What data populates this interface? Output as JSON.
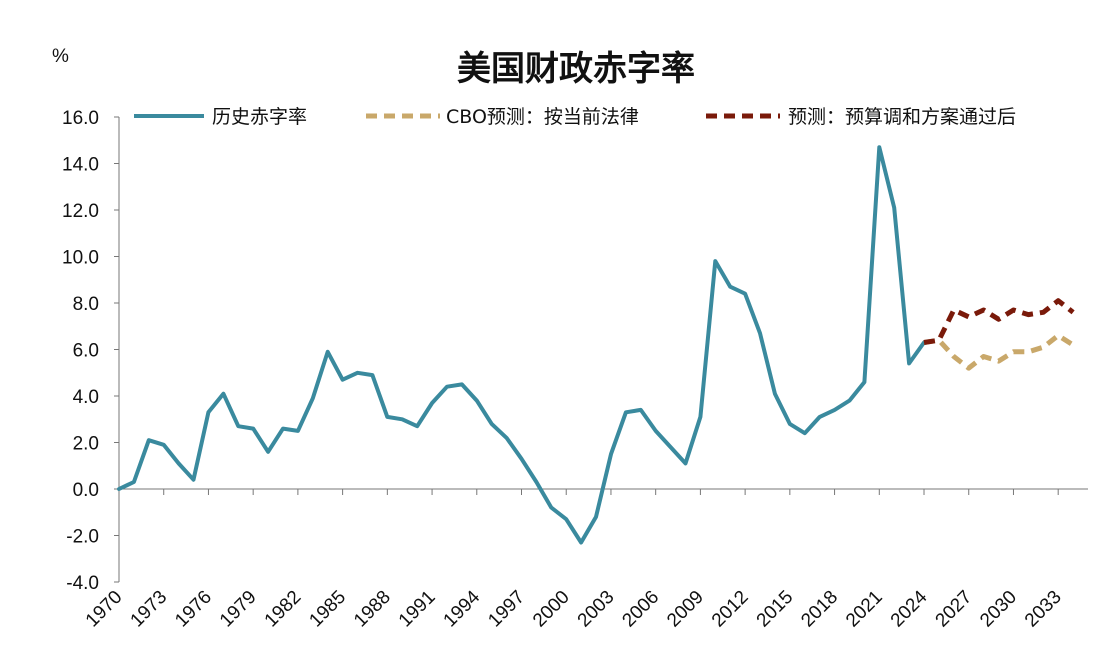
{
  "chart_data": {
    "type": "line",
    "title": "美国财政赤字率",
    "unit_label": "%",
    "ylim": [
      -4,
      16
    ],
    "y_ticks": [
      "16.0",
      "14.0",
      "12.0",
      "10.0",
      "8.0",
      "6.0",
      "4.0",
      "2.0",
      "0.0",
      "-2.0",
      "-4.0"
    ],
    "xlim": [
      1970,
      2035
    ],
    "x_ticks": [
      "1970",
      "1973",
      "1976",
      "1979",
      "1982",
      "1985",
      "1988",
      "1991",
      "1994",
      "1997",
      "2000",
      "2003",
      "2006",
      "2009",
      "2012",
      "2015",
      "2018",
      "2021",
      "2024",
      "2027",
      "2030",
      "2033"
    ],
    "grid": false,
    "legend_position": "top",
    "series": [
      {
        "name": "历史赤字率",
        "color": "#3a8a9e",
        "style": "solid",
        "x": [
          1970,
          1971,
          1972,
          1973,
          1974,
          1975,
          1976,
          1977,
          1978,
          1979,
          1980,
          1981,
          1982,
          1983,
          1984,
          1985,
          1986,
          1987,
          1988,
          1989,
          1990,
          1991,
          1992,
          1993,
          1994,
          1995,
          1996,
          1997,
          1998,
          1999,
          2000,
          2001,
          2002,
          2003,
          2004,
          2005,
          2006,
          2007,
          2008,
          2009,
          2010,
          2011,
          2012,
          2013,
          2014,
          2015,
          2016,
          2017,
          2018,
          2019,
          2020,
          2021,
          2022,
          2023,
          2024
        ],
        "values": [
          0.0,
          0.3,
          2.1,
          1.9,
          1.1,
          0.4,
          3.3,
          4.1,
          2.7,
          2.6,
          1.6,
          2.6,
          2.5,
          3.9,
          5.9,
          4.7,
          5.0,
          4.9,
          3.1,
          3.0,
          2.7,
          3.7,
          4.4,
          4.5,
          3.8,
          2.8,
          2.2,
          1.3,
          0.3,
          -0.8,
          -1.3,
          -2.3,
          -1.2,
          1.5,
          3.3,
          3.4,
          2.5,
          1.8,
          1.1,
          3.1,
          9.8,
          8.7,
          8.4,
          6.7,
          4.1,
          2.8,
          2.4,
          3.1,
          3.4,
          3.8,
          4.6,
          14.7,
          12.1,
          5.4,
          6.3
        ]
      },
      {
        "name": "CBO预测：按当前法律",
        "color": "#c9a86a",
        "style": "dashed",
        "x": [
          2024,
          2025,
          2026,
          2027,
          2028,
          2029,
          2030,
          2031,
          2032,
          2033,
          2034
        ],
        "values": [
          6.3,
          6.4,
          5.7,
          5.2,
          5.7,
          5.5,
          5.9,
          5.9,
          6.1,
          6.6,
          6.2
        ]
      },
      {
        "name": "预测：预算调和方案通过后",
        "color": "#7a1a0a",
        "style": "dashed",
        "x": [
          2024,
          2025,
          2026,
          2027,
          2028,
          2029,
          2030,
          2031,
          2032,
          2033,
          2034
        ],
        "values": [
          6.3,
          6.4,
          7.7,
          7.4,
          7.7,
          7.3,
          7.7,
          7.5,
          7.6,
          8.1,
          7.6
        ]
      }
    ]
  }
}
